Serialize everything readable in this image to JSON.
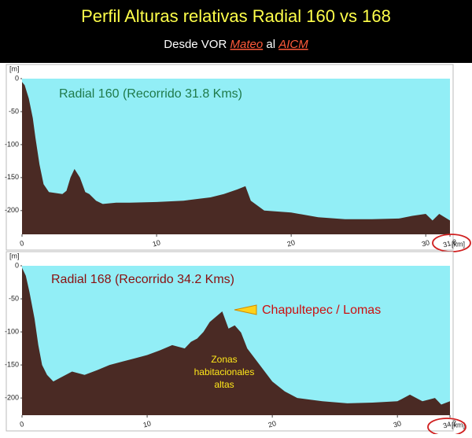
{
  "header": {
    "title": "Perfil Alturas relativas Radial 160 vs 168",
    "subtitle": [
      "Desde VOR",
      "Mateo",
      "al",
      "AICM"
    ]
  },
  "chart_data": [
    {
      "type": "area",
      "annotation": "Radial 160 (Recorrido 31.8 Kms)",
      "y_label": "[m]",
      "x_label": "[km]",
      "color": "#4a2a24",
      "background": "#92eef6",
      "xlim": [
        0,
        31.8
      ],
      "xticks": [
        0,
        10,
        20,
        30,
        31.8
      ],
      "ylim": [
        -236,
        0
      ],
      "yticks": [
        0,
        -50,
        -100,
        -150,
        -200
      ],
      "x": [
        0,
        0.2,
        0.5,
        0.8,
        1,
        1.3,
        1.6,
        2,
        3,
        3.3,
        3.6,
        3.9,
        4.3,
        4.7,
        5,
        5.5,
        6,
        7,
        8,
        10,
        12,
        14,
        15,
        16,
        16.6,
        17,
        18,
        20,
        22,
        24,
        26,
        28,
        29,
        30,
        30.5,
        31,
        31.8
      ],
      "values": [
        -5,
        -10,
        -30,
        -60,
        -90,
        -130,
        -160,
        -172,
        -175,
        -170,
        -150,
        -137,
        -150,
        -172,
        -175,
        -185,
        -190,
        -188,
        -188,
        -187,
        -185,
        -180,
        -175,
        -168,
        -163,
        -185,
        -200,
        -203,
        -210,
        -213,
        -213,
        -212,
        -208,
        -205,
        -215,
        -205,
        -215
      ]
    },
    {
      "type": "area",
      "annotation": "Radial 168 (Recorrido 34.2 Kms)",
      "y_label": "[m]",
      "x_label": "[km]",
      "color": "#4a2a24",
      "background": "#92eef6",
      "xlim": [
        0,
        34.2
      ],
      "xticks": [
        0,
        10,
        20,
        30,
        34.2
      ],
      "ylim": [
        -226,
        0
      ],
      "yticks": [
        0,
        -50,
        -100,
        -150,
        -200
      ],
      "x": [
        0,
        0.3,
        0.6,
        1,
        1.3,
        1.6,
        2,
        2.5,
        3,
        4,
        5,
        6,
        7,
        8,
        9,
        10,
        11,
        12,
        13,
        13.5,
        14,
        14.5,
        15,
        16,
        16.5,
        17,
        17.5,
        18,
        19,
        20,
        21,
        22,
        24,
        26,
        28,
        30,
        31,
        32,
        33,
        33.5,
        34.2
      ],
      "values": [
        -3,
        -15,
        -40,
        -80,
        -120,
        -150,
        -165,
        -175,
        -170,
        -160,
        -165,
        -158,
        -150,
        -145,
        -140,
        -135,
        -128,
        -120,
        -125,
        -115,
        -110,
        -100,
        -85,
        -69,
        -95,
        -90,
        -101,
        -125,
        -150,
        -175,
        -190,
        -200,
        -205,
        -208,
        -207,
        -205,
        -195,
        -205,
        -200,
        -210,
        -205
      ],
      "callout": "Chapultepec / Lomas",
      "zone_label": [
        "Zonas",
        "habitacionales",
        "altas"
      ]
    }
  ]
}
